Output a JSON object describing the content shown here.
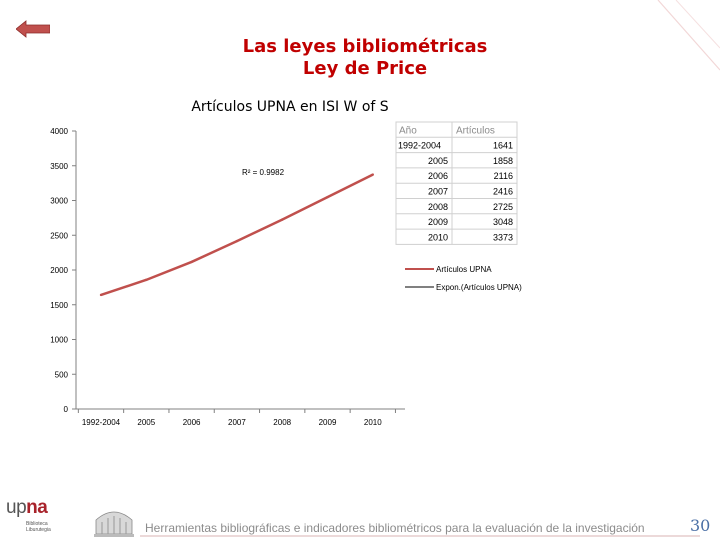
{
  "slide": {
    "title_line1": "Las leyes bibliométricas",
    "title_line2": "Ley de Price",
    "footer": "Herramientas bibliográficas e indicadores bibliométricos para la evaluación de la investigación",
    "page_number": "30"
  },
  "logo": {
    "text_up": "up",
    "text_na": "na",
    "subtitle_line1": "Biblioteca",
    "subtitle_line2": "Liburutegia"
  },
  "colors": {
    "title": "#c00000",
    "series_line": "#c0504d",
    "trend_line": "#000000",
    "table_header": "#8c8c8c",
    "footer_text": "#8c8c8c",
    "page_number": "#4a6fa5"
  },
  "chart_data": {
    "type": "line",
    "title": "Artículos UPNA en ISI W of S",
    "categories": [
      "1992-2004",
      "2005",
      "2006",
      "2007",
      "2008",
      "2009",
      "2010"
    ],
    "series": [
      {
        "name": "Artículos UPNA",
        "values": [
          1641,
          1858,
          2116,
          2416,
          2725,
          3048,
          3373
        ]
      }
    ],
    "trendline": {
      "name": "Expon.(Artículos UPNA)",
      "r_squared_label": "R² = 0.9982"
    },
    "ylim": [
      0,
      4000
    ],
    "yticks": [
      0,
      500,
      1000,
      1500,
      2000,
      2500,
      3000,
      3500,
      4000
    ],
    "grid": false,
    "legend_position": "right",
    "data_table": {
      "headers": [
        "Año",
        "Artículos"
      ],
      "rows": [
        [
          "1992-2004",
          "1641"
        ],
        [
          "2005",
          "1858"
        ],
        [
          "2006",
          "2116"
        ],
        [
          "2007",
          "2416"
        ],
        [
          "2008",
          "2725"
        ],
        [
          "2009",
          "3048"
        ],
        [
          "2010",
          "3373"
        ]
      ]
    }
  }
}
